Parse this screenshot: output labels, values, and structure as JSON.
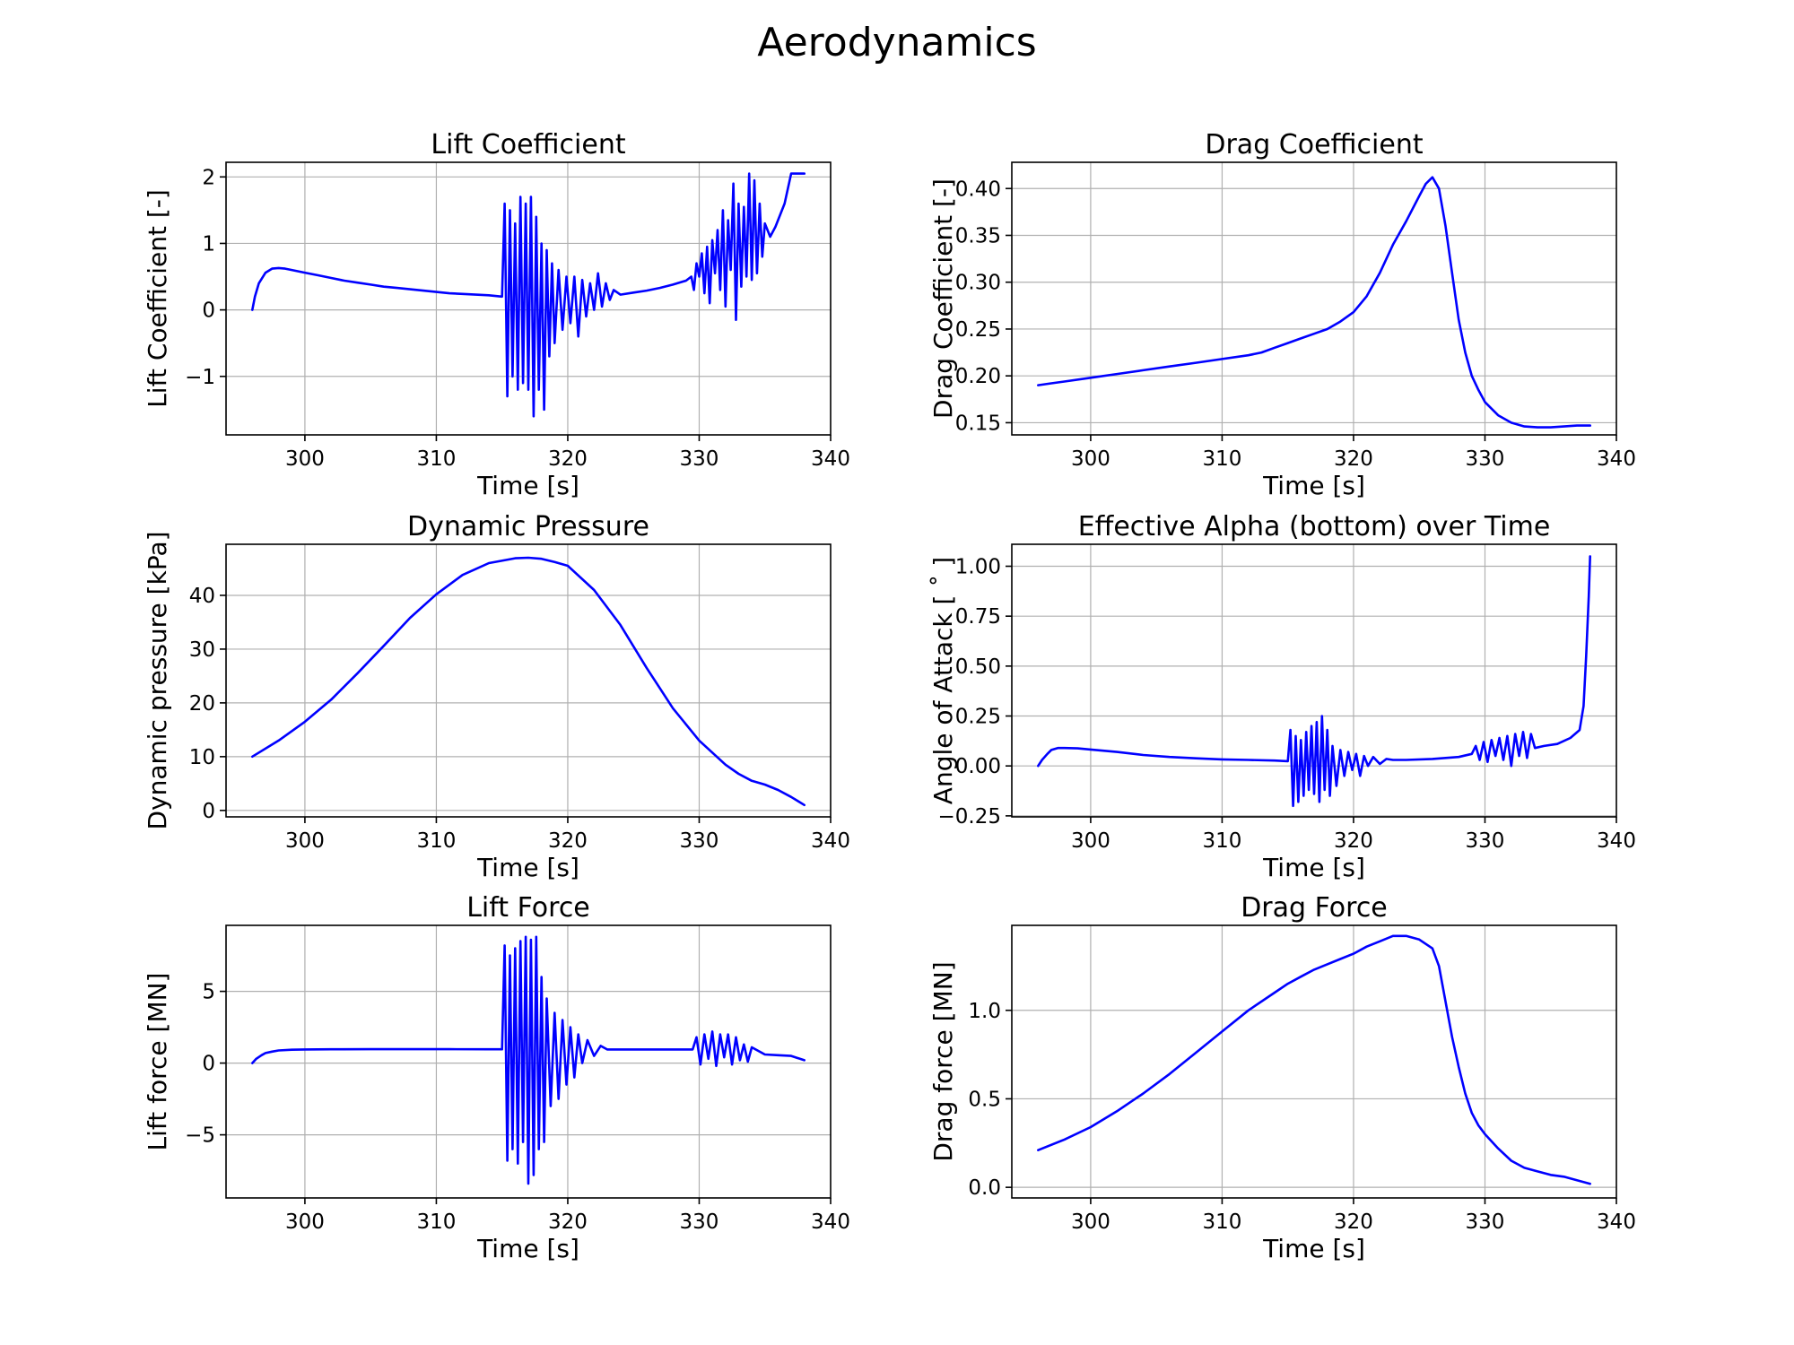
{
  "figure": {
    "title": "Aerodynamics",
    "line_color": "#0000ff"
  },
  "chart_data": [
    {
      "id": "lift-coefficient",
      "type": "line",
      "title": "Lift Coefficient",
      "xlabel": "Time [s]",
      "ylabel": "Lift Coefficient [-]",
      "xlim": [
        294,
        340
      ],
      "ylim": [
        -1.88,
        2.22
      ],
      "xticks": [
        300,
        310,
        320,
        330,
        340
      ],
      "yticks": [
        -1,
        0,
        1,
        2
      ],
      "ytick_labels": [
        "−1",
        "0",
        "1",
        "2"
      ],
      "grid": true,
      "series": [
        {
          "x": [
            296.0,
            296.2,
            296.5,
            297.0,
            297.5,
            298.0,
            298.5,
            299.0,
            300.0,
            301.0,
            302.0,
            303.0,
            304.0,
            305.0,
            306.0,
            307.0,
            308.0,
            309.0,
            310.0,
            311.0,
            312.0,
            313.0,
            314.0,
            315.0,
            315.2,
            315.4,
            315.6,
            315.8,
            316.0,
            316.2,
            316.4,
            316.6,
            316.8,
            317.0,
            317.2,
            317.4,
            317.6,
            317.8,
            318.0,
            318.2,
            318.4,
            318.6,
            318.8,
            319.0,
            319.3,
            319.6,
            319.9,
            320.2,
            320.5,
            320.8,
            321.1,
            321.4,
            321.7,
            322.0,
            322.3,
            322.6,
            322.9,
            323.2,
            323.5,
            324.0,
            325.0,
            326.0,
            327.0,
            328.0,
            329.0,
            329.4,
            329.6,
            329.8,
            330.0,
            330.2,
            330.4,
            330.6,
            330.8,
            331.0,
            331.2,
            331.4,
            331.6,
            331.8,
            332.0,
            332.2,
            332.4,
            332.6,
            332.8,
            333.0,
            333.2,
            333.4,
            333.6,
            333.8,
            334.0,
            334.2,
            334.4,
            334.6,
            334.8,
            335.0,
            335.4,
            335.8,
            336.0,
            336.5,
            337.0,
            337.4,
            338.0
          ],
          "y": [
            0.0,
            0.2,
            0.4,
            0.56,
            0.62,
            0.63,
            0.62,
            0.6,
            0.56,
            0.52,
            0.48,
            0.44,
            0.41,
            0.38,
            0.35,
            0.33,
            0.31,
            0.29,
            0.27,
            0.25,
            0.24,
            0.23,
            0.22,
            0.2,
            1.6,
            -1.3,
            1.5,
            -1.0,
            1.3,
            -1.2,
            1.7,
            -1.1,
            1.6,
            -1.2,
            1.7,
            -1.6,
            1.4,
            -1.2,
            1.0,
            -1.5,
            0.9,
            -0.7,
            0.7,
            -0.5,
            0.6,
            -0.3,
            0.5,
            -0.2,
            0.5,
            -0.4,
            0.45,
            -0.1,
            0.4,
            0.0,
            0.55,
            0.05,
            0.4,
            0.15,
            0.3,
            0.23,
            0.26,
            0.29,
            0.33,
            0.38,
            0.44,
            0.5,
            0.3,
            0.7,
            0.5,
            0.85,
            0.25,
            0.95,
            0.1,
            1.05,
            0.55,
            1.2,
            0.3,
            1.5,
            0.05,
            1.35,
            0.6,
            1.9,
            -0.15,
            1.6,
            0.35,
            1.55,
            0.5,
            2.05,
            0.45,
            1.95,
            0.55,
            1.6,
            0.8,
            1.3,
            1.1,
            1.25,
            1.35,
            1.6,
            2.05,
            2.05,
            2.05
          ]
        }
      ]
    },
    {
      "id": "drag-coefficient",
      "type": "line",
      "title": "Drag Coefficient",
      "xlabel": "Time [s]",
      "ylabel": "Drag Coefficient [-]",
      "xlim": [
        294,
        340
      ],
      "ylim": [
        0.137,
        0.428
      ],
      "xticks": [
        300,
        310,
        320,
        330,
        340
      ],
      "yticks": [
        0.15,
        0.2,
        0.25,
        0.3,
        0.35,
        0.4
      ],
      "ytick_labels": [
        "0.15",
        "0.20",
        "0.25",
        "0.30",
        "0.35",
        "0.40"
      ],
      "grid": true,
      "series": [
        {
          "x": [
            296,
            297,
            298,
            300,
            302,
            304,
            306,
            308,
            310,
            312,
            313,
            314,
            315,
            316,
            317,
            318,
            319,
            320,
            321,
            322,
            323,
            324,
            325,
            325.5,
            326,
            326.5,
            327,
            327.5,
            328,
            328.5,
            329,
            329.5,
            330,
            331,
            332,
            333,
            334,
            335,
            336,
            337,
            338
          ],
          "y": [
            0.19,
            0.192,
            0.194,
            0.198,
            0.202,
            0.206,
            0.21,
            0.214,
            0.218,
            0.222,
            0.225,
            0.23,
            0.235,
            0.24,
            0.245,
            0.25,
            0.258,
            0.268,
            0.285,
            0.31,
            0.34,
            0.365,
            0.392,
            0.405,
            0.412,
            0.4,
            0.36,
            0.31,
            0.26,
            0.225,
            0.2,
            0.185,
            0.172,
            0.158,
            0.15,
            0.146,
            0.145,
            0.145,
            0.146,
            0.147,
            0.147
          ]
        }
      ]
    },
    {
      "id": "dynamic-pressure",
      "type": "line",
      "title": "Dynamic Pressure",
      "xlabel": "Time [s]",
      "ylabel": "Dynamic pressure [kPa]",
      "xlim": [
        294,
        340
      ],
      "ylim": [
        -1.2,
        49.5
      ],
      "xticks": [
        300,
        310,
        320,
        330,
        340
      ],
      "yticks": [
        0,
        10,
        20,
        30,
        40
      ],
      "ytick_labels": [
        "0",
        "10",
        "20",
        "30",
        "40"
      ],
      "grid": true,
      "series": [
        {
          "x": [
            296,
            298,
            300,
            302,
            304,
            306,
            308,
            310,
            312,
            314,
            316,
            317,
            318,
            319,
            320,
            322,
            324,
            326,
            328,
            330,
            332,
            333,
            334,
            335,
            336,
            337,
            338
          ],
          "y": [
            10.0,
            13.0,
            16.5,
            20.6,
            25.5,
            30.6,
            35.8,
            40.2,
            43.8,
            46.0,
            46.9,
            47.0,
            46.8,
            46.2,
            45.5,
            41.0,
            34.5,
            26.5,
            19.0,
            13.0,
            8.5,
            6.8,
            5.5,
            4.8,
            3.8,
            2.5,
            1.0
          ]
        }
      ]
    },
    {
      "id": "effective-alpha",
      "type": "line",
      "title": "Effective Alpha (bottom) over Time",
      "xlabel": "Time [s]",
      "ylabel": "Angle of Attack [$^\\circ$]",
      "ylabel_display": "Angle of Attack [ ˚ ]",
      "xlim": [
        294,
        340
      ],
      "ylim": [
        -0.255,
        1.11
      ],
      "xticks": [
        300,
        310,
        320,
        330,
        340
      ],
      "yticks": [
        -0.25,
        0.0,
        0.25,
        0.5,
        0.75,
        1.0
      ],
      "ytick_labels": [
        "−0.25",
        "0.00",
        "0.25",
        "0.50",
        "0.75",
        "1.00"
      ],
      "grid": true,
      "series": [
        {
          "x": [
            296.0,
            296.3,
            296.7,
            297.0,
            297.5,
            298.0,
            299.0,
            300.0,
            302.0,
            304.0,
            306.0,
            308.0,
            310.0,
            312.0,
            314.0,
            315.0,
            315.2,
            315.4,
            315.6,
            315.8,
            316.0,
            316.2,
            316.4,
            316.6,
            316.8,
            317.0,
            317.2,
            317.4,
            317.6,
            317.8,
            318.0,
            318.2,
            318.4,
            318.7,
            319.0,
            319.3,
            319.6,
            319.9,
            320.2,
            320.5,
            320.8,
            321.1,
            321.5,
            322.0,
            322.5,
            323.0,
            324.0,
            326.0,
            328.0,
            329.0,
            329.3,
            329.6,
            329.9,
            330.2,
            330.5,
            330.8,
            331.1,
            331.4,
            331.7,
            332.0,
            332.3,
            332.6,
            332.9,
            333.2,
            333.5,
            333.8,
            334.5,
            335.5,
            336.5,
            337.2,
            337.5,
            337.7,
            337.9,
            338.0
          ],
          "y": [
            0.0,
            0.03,
            0.06,
            0.08,
            0.09,
            0.09,
            0.088,
            0.082,
            0.07,
            0.055,
            0.045,
            0.038,
            0.033,
            0.03,
            0.027,
            0.024,
            0.18,
            -0.2,
            0.15,
            -0.18,
            0.13,
            -0.15,
            0.17,
            -0.12,
            0.2,
            -0.14,
            0.22,
            -0.18,
            0.25,
            -0.12,
            0.18,
            -0.15,
            0.1,
            -0.1,
            0.08,
            -0.05,
            0.07,
            -0.02,
            0.06,
            -0.05,
            0.05,
            0.0,
            0.045,
            0.01,
            0.035,
            0.03,
            0.03,
            0.035,
            0.045,
            0.06,
            0.1,
            0.03,
            0.12,
            0.02,
            0.13,
            0.05,
            0.14,
            0.03,
            0.15,
            0.0,
            0.16,
            0.05,
            0.17,
            0.04,
            0.16,
            0.09,
            0.1,
            0.11,
            0.14,
            0.18,
            0.3,
            0.55,
            0.85,
            1.05
          ]
        }
      ]
    },
    {
      "id": "lift-force",
      "type": "line",
      "title": "Lift Force",
      "xlabel": "Time [s]",
      "ylabel": "Lift force [MN]",
      "xlim": [
        294,
        340
      ],
      "ylim": [
        -9.4,
        9.6
      ],
      "xticks": [
        300,
        310,
        320,
        330,
        340
      ],
      "yticks": [
        -5,
        0,
        5
      ],
      "ytick_labels": [
        "−5",
        "0",
        "5"
      ],
      "grid": true,
      "series": [
        {
          "x": [
            296.0,
            296.3,
            296.7,
            297.0,
            297.5,
            298.0,
            299.0,
            300.0,
            302.0,
            305.0,
            308.0,
            311.0,
            314.0,
            315.0,
            315.2,
            315.4,
            315.6,
            315.8,
            316.0,
            316.2,
            316.4,
            316.6,
            316.8,
            317.0,
            317.2,
            317.4,
            317.6,
            317.8,
            318.0,
            318.2,
            318.4,
            318.7,
            319.0,
            319.3,
            319.6,
            319.9,
            320.2,
            320.5,
            320.8,
            321.1,
            321.5,
            322.0,
            322.5,
            323.0,
            324.0,
            326.0,
            328.0,
            329.5,
            329.8,
            330.1,
            330.4,
            330.7,
            331.0,
            331.3,
            331.6,
            331.9,
            332.2,
            332.5,
            332.8,
            333.1,
            333.4,
            333.7,
            334.0,
            335.0,
            336.0,
            337.0,
            338.0
          ],
          "y": [
            0.0,
            0.3,
            0.55,
            0.7,
            0.8,
            0.88,
            0.93,
            0.95,
            0.96,
            0.97,
            0.97,
            0.97,
            0.96,
            0.96,
            8.2,
            -6.8,
            7.5,
            -6.0,
            8.0,
            -7.0,
            8.5,
            -5.5,
            8.8,
            -8.4,
            8.6,
            -7.8,
            8.8,
            -6.0,
            6.0,
            -5.5,
            4.5,
            -3.0,
            3.5,
            -2.5,
            3.0,
            -1.5,
            2.5,
            -1.0,
            2.0,
            0.0,
            1.6,
            0.5,
            1.2,
            0.95,
            0.95,
            0.95,
            0.95,
            0.95,
            1.8,
            -0.1,
            2.0,
            0.3,
            2.2,
            -0.2,
            2.0,
            0.4,
            2.0,
            -0.1,
            1.8,
            0.2,
            1.3,
            0.1,
            1.1,
            0.6,
            0.55,
            0.5,
            0.2
          ]
        }
      ]
    },
    {
      "id": "drag-force",
      "type": "line",
      "title": "Drag Force",
      "xlabel": "Time [s]",
      "ylabel": "Drag force [MN]",
      "xlim": [
        294,
        340
      ],
      "ylim": [
        -0.06,
        1.48
      ],
      "xticks": [
        300,
        310,
        320,
        330,
        340
      ],
      "yticks": [
        0.0,
        0.5,
        1.0
      ],
      "ytick_labels": [
        "0.0",
        "0.5",
        "1.0"
      ],
      "grid": true,
      "series": [
        {
          "x": [
            296,
            298,
            300,
            302,
            304,
            306,
            308,
            310,
            312,
            314,
            315,
            316,
            317,
            318,
            319,
            320,
            321,
            322,
            323,
            324,
            325,
            326,
            326.5,
            327,
            327.5,
            328,
            328.5,
            329,
            329.5,
            330,
            331,
            332,
            333,
            334,
            335,
            336,
            337,
            338
          ],
          "y": [
            0.21,
            0.27,
            0.34,
            0.43,
            0.53,
            0.64,
            0.76,
            0.88,
            1.0,
            1.1,
            1.15,
            1.19,
            1.23,
            1.26,
            1.29,
            1.32,
            1.36,
            1.39,
            1.42,
            1.42,
            1.4,
            1.35,
            1.25,
            1.05,
            0.85,
            0.68,
            0.53,
            0.42,
            0.35,
            0.3,
            0.22,
            0.15,
            0.11,
            0.09,
            0.07,
            0.06,
            0.04,
            0.02
          ]
        }
      ]
    }
  ]
}
